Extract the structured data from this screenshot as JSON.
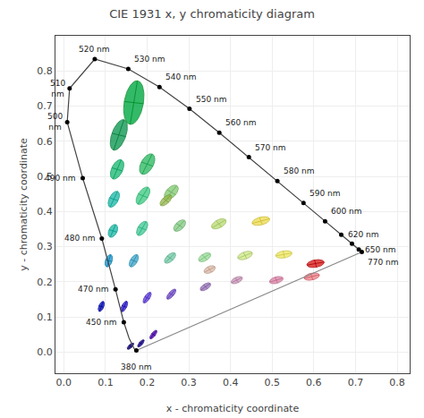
{
  "chart_data": {
    "type": "line",
    "title": "CIE 1931 x, y chromaticity diagram",
    "xlabel": "x - chromaticity coordinate",
    "ylabel": "y - chromaticity coordinate",
    "xlim": [
      -0.02,
      0.83
    ],
    "ylim": [
      -0.06,
      0.9
    ],
    "xticks": [
      {
        "value": 0,
        "label": "0.0"
      },
      0.1,
      0.2,
      0.3,
      0.4,
      0.5,
      0.6,
      0.7,
      0.8
    ],
    "yticks": [
      {
        "value": 0,
        "label": "0.0"
      },
      0.1,
      0.2,
      0.3,
      0.4,
      0.5,
      0.6,
      0.7,
      0.8
    ],
    "grid": true,
    "series": [
      {
        "type": "line",
        "color": "#444444",
        "x": [
          0.1741,
          0.1738,
          0.1726,
          0.1714,
          0.1689,
          0.1644,
          0.1566,
          0.144,
          0.1241,
          0.0913,
          0.0454,
          0.0082,
          0.0139,
          0.0743,
          0.1547,
          0.2296,
          0.3016,
          0.3731,
          0.4441,
          0.5125,
          0.5752,
          0.627,
          0.6658,
          0.6915,
          0.7079,
          0.714,
          0.715,
          0.7151
        ],
        "y": [
          0.005,
          0.0049,
          0.0048,
          0.0051,
          0.01,
          0.02,
          0.0399,
          0.085,
          0.1786,
          0.3233,
          0.495,
          0.6543,
          0.7502,
          0.8338,
          0.8059,
          0.7543,
          0.6923,
          0.6245,
          0.5547,
          0.4866,
          0.4242,
          0.3725,
          0.334,
          0.3083,
          0.292,
          0.2859,
          0.285,
          0.2849
        ]
      },
      {
        "type": "line",
        "color": "#888888",
        "x": [
          0.7151,
          0.1741
        ],
        "y": [
          0.2849,
          0.005
        ]
      },
      {
        "type": "scatter",
        "color": "#000000",
        "x": [
          0.1741,
          0.144,
          0.1241,
          0.0913,
          0.0454,
          0.0082,
          0.0139,
          0.0743,
          0.1547,
          0.2296,
          0.3016,
          0.3731,
          0.4441,
          0.5125,
          0.5752,
          0.627,
          0.6658,
          0.6915,
          0.7079,
          0.7151
        ],
        "y": [
          0.005,
          0.085,
          0.1786,
          0.3233,
          0.495,
          0.6543,
          0.7502,
          0.8338,
          0.8059,
          0.7543,
          0.6923,
          0.6245,
          0.5547,
          0.4866,
          0.4242,
          0.3725,
          0.334,
          0.3083,
          0.292,
          0.2849
        ]
      }
    ],
    "annotations": [
      {
        "text": "380 nm",
        "x": 0.1741,
        "y": 0.005
      },
      {
        "text": "450 nm",
        "x": 0.144,
        "y": 0.085
      },
      {
        "text": "470 nm",
        "x": 0.1241,
        "y": 0.1786
      },
      {
        "text": "480 nm",
        "x": 0.0913,
        "y": 0.3233
      },
      {
        "text": "490 nm",
        "x": 0.0454,
        "y": 0.495
      },
      {
        "text": "500\nnm",
        "x": 0.0082,
        "y": 0.6543
      },
      {
        "text": "510\nnm",
        "x": 0.0139,
        "y": 0.7502
      },
      {
        "text": "520 nm",
        "x": 0.0743,
        "y": 0.8338
      },
      {
        "text": "530 nm",
        "x": 0.1547,
        "y": 0.8059
      },
      {
        "text": "540 nm",
        "x": 0.2296,
        "y": 0.7543
      },
      {
        "text": "550 nm",
        "x": 0.3016,
        "y": 0.6923
      },
      {
        "text": "560 nm",
        "x": 0.3731,
        "y": 0.6245
      },
      {
        "text": "570 nm",
        "x": 0.4441,
        "y": 0.5547
      },
      {
        "text": "580 nm",
        "x": 0.5125,
        "y": 0.4866
      },
      {
        "text": "590 nm",
        "x": 0.5752,
        "y": 0.4242
      },
      {
        "text": "600 nm",
        "x": 0.627,
        "y": 0.3725
      },
      {
        "text": "620 nm",
        "x": 0.6658,
        "y": 0.334
      },
      {
        "text": "650 nm",
        "x": 0.7079,
        "y": 0.292
      },
      {
        "text": "770 nm",
        "x": 0.7151,
        "y": 0.2849
      }
    ],
    "ellipses": [
      {
        "cx": 0.16,
        "cy": 0.017,
        "w": 0.022,
        "h": 0.009,
        "angle": 50,
        "color": "#1a0088",
        "edge_color": "#000055"
      },
      {
        "cx": 0.185,
        "cy": 0.025,
        "w": 0.024,
        "h": 0.009,
        "angle": 55,
        "color": "#22008f",
        "edge_color": "#00006a"
      },
      {
        "cx": 0.215,
        "cy": 0.05,
        "w": 0.028,
        "h": 0.01,
        "angle": 58,
        "color": "#5500bb",
        "edge_color": "#330088"
      },
      {
        "cx": 0.09,
        "cy": 0.13,
        "w": 0.03,
        "h": 0.012,
        "angle": 72,
        "color": "#0011bb",
        "edge_color": "#000099"
      },
      {
        "cx": 0.145,
        "cy": 0.13,
        "w": 0.032,
        "h": 0.012,
        "angle": 68,
        "color": "#3322cc",
        "edge_color": "#1100aa"
      },
      {
        "cx": 0.2,
        "cy": 0.155,
        "w": 0.034,
        "h": 0.013,
        "angle": 62,
        "color": "#6644dd",
        "edge_color": "#4422bb"
      },
      {
        "cx": 0.258,
        "cy": 0.165,
        "w": 0.034,
        "h": 0.013,
        "angle": 55,
        "color": "#7755cc",
        "edge_color": "#5533aa"
      },
      {
        "cx": 0.34,
        "cy": 0.186,
        "w": 0.03,
        "h": 0.015,
        "angle": 40,
        "color": "#9977bb",
        "edge_color": "#775599"
      },
      {
        "cx": 0.415,
        "cy": 0.205,
        "w": 0.03,
        "h": 0.016,
        "angle": 30,
        "color": "#cc99bb",
        "edge_color": "#aa7799"
      },
      {
        "cx": 0.51,
        "cy": 0.205,
        "w": 0.034,
        "h": 0.018,
        "angle": 20,
        "color": "#dd88aa",
        "edge_color": "#bb6688"
      },
      {
        "cx": 0.595,
        "cy": 0.215,
        "w": 0.038,
        "h": 0.019,
        "angle": 15,
        "color": "#ee8888",
        "edge_color": "#cc5566"
      },
      {
        "cx": 0.108,
        "cy": 0.26,
        "w": 0.036,
        "h": 0.016,
        "angle": 75,
        "color": "#2299cc",
        "edge_color": "#0077aa"
      },
      {
        "cx": 0.168,
        "cy": 0.26,
        "w": 0.038,
        "h": 0.017,
        "angle": 65,
        "color": "#44aacc",
        "edge_color": "#2288aa"
      },
      {
        "cx": 0.255,
        "cy": 0.268,
        "w": 0.036,
        "h": 0.018,
        "angle": 50,
        "color": "#77ccaa",
        "edge_color": "#55aa88"
      },
      {
        "cx": 0.338,
        "cy": 0.27,
        "w": 0.034,
        "h": 0.019,
        "angle": 38,
        "color": "#99dd99",
        "edge_color": "#77bb77"
      },
      {
        "cx": 0.435,
        "cy": 0.275,
        "w": 0.038,
        "h": 0.02,
        "angle": 25,
        "color": "#cced88",
        "edge_color": "#aabb66"
      },
      {
        "cx": 0.528,
        "cy": 0.278,
        "w": 0.04,
        "h": 0.02,
        "angle": 12,
        "color": "#eee866",
        "edge_color": "#ccc644"
      },
      {
        "cx": 0.118,
        "cy": 0.345,
        "w": 0.038,
        "h": 0.02,
        "angle": 70,
        "color": "#22bbaa",
        "edge_color": "#009988"
      },
      {
        "cx": 0.188,
        "cy": 0.352,
        "w": 0.044,
        "h": 0.021,
        "angle": 64,
        "color": "#44cc99",
        "edge_color": "#22aa77"
      },
      {
        "cx": 0.278,
        "cy": 0.36,
        "w": 0.038,
        "h": 0.021,
        "angle": 52,
        "color": "#88cc88",
        "edge_color": "#66aa66"
      },
      {
        "cx": 0.372,
        "cy": 0.365,
        "w": 0.04,
        "h": 0.022,
        "angle": 35,
        "color": "#bbdd77",
        "edge_color": "#99bb55"
      },
      {
        "cx": 0.473,
        "cy": 0.373,
        "w": 0.044,
        "h": 0.022,
        "angle": 18,
        "color": "#eedd55",
        "edge_color": "#ccbb33"
      },
      {
        "cx": 0.12,
        "cy": 0.435,
        "w": 0.048,
        "h": 0.022,
        "angle": 68,
        "color": "#22bbaa",
        "edge_color": "#009988"
      },
      {
        "cx": 0.19,
        "cy": 0.445,
        "w": 0.054,
        "h": 0.025,
        "angle": 63,
        "color": "#44cc88",
        "edge_color": "#22aa66"
      },
      {
        "cx": 0.258,
        "cy": 0.455,
        "w": 0.046,
        "h": 0.025,
        "angle": 55,
        "color": "#88cc77",
        "edge_color": "#66aa55"
      },
      {
        "cx": 0.128,
        "cy": 0.52,
        "w": 0.058,
        "h": 0.027,
        "angle": 70,
        "color": "#22bb77",
        "edge_color": "#009955"
      },
      {
        "cx": 0.2,
        "cy": 0.535,
        "w": 0.062,
        "h": 0.03,
        "angle": 67,
        "color": "#33bb66",
        "edge_color": "#119944"
      },
      {
        "cx": 0.132,
        "cy": 0.618,
        "w": 0.09,
        "h": 0.034,
        "angle": 74,
        "color": "#119955",
        "edge_color": "#007733"
      },
      {
        "cx": 0.168,
        "cy": 0.71,
        "w": 0.125,
        "h": 0.046,
        "angle": 82,
        "color": "#00aa44",
        "edge_color": "#008822"
      },
      {
        "cx": 0.245,
        "cy": 0.432,
        "w": 0.038,
        "h": 0.018,
        "angle": 50,
        "color": "#99bb55",
        "edge_color": "#779933"
      },
      {
        "cx": 0.35,
        "cy": 0.235,
        "w": 0.03,
        "h": 0.018,
        "angle": 32,
        "color": "#ddbbaa",
        "edge_color": "#bb9988"
      },
      {
        "cx": 0.604,
        "cy": 0.252,
        "w": 0.042,
        "h": 0.021,
        "angle": 12,
        "color": "#dd2222",
        "edge_color": "#aa0000"
      }
    ]
  }
}
